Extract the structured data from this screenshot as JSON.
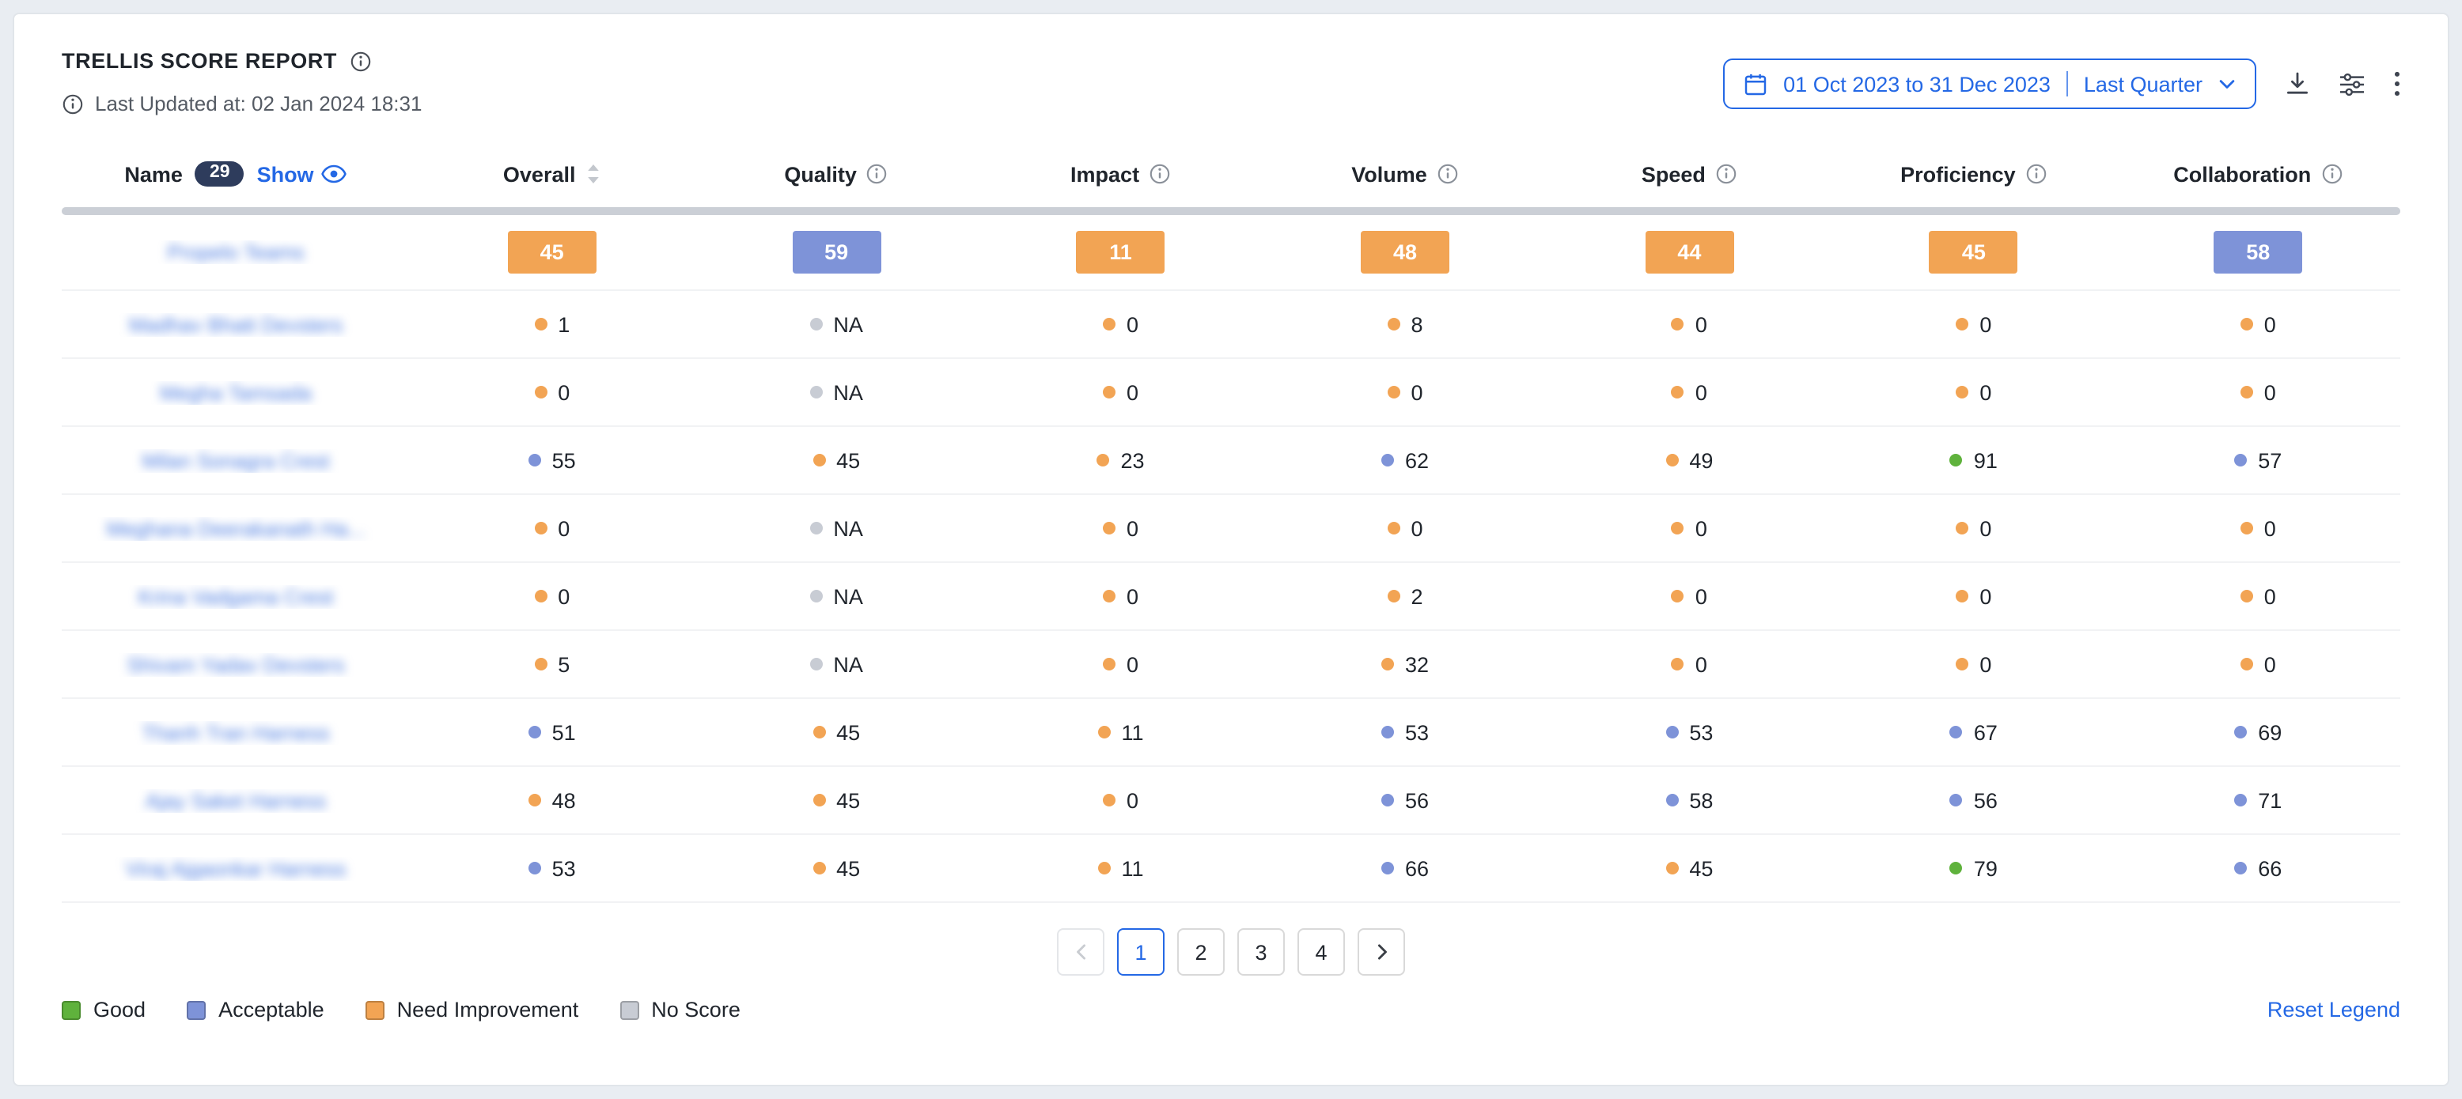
{
  "header": {
    "title": "TRELLIS SCORE REPORT",
    "last_updated": "Last Updated at: 02 Jan 2024 18:31",
    "date_range": "01 Oct 2023 to 31 Dec 2023",
    "date_preset": "Last Quarter"
  },
  "table": {
    "name_header": "Name",
    "count_badge": "29",
    "show_label": "Show",
    "names_obfuscated": true,
    "columns": [
      "Overall",
      "Quality",
      "Impact",
      "Volume",
      "Speed",
      "Proficiency",
      "Collaboration"
    ],
    "summary_row": {
      "name": "Propelo Teams",
      "scores": [
        {
          "value": "45",
          "level": "need-improvement"
        },
        {
          "value": "59",
          "level": "acceptable"
        },
        {
          "value": "11",
          "level": "need-improvement"
        },
        {
          "value": "48",
          "level": "need-improvement"
        },
        {
          "value": "44",
          "level": "need-improvement"
        },
        {
          "value": "45",
          "level": "need-improvement"
        },
        {
          "value": "58",
          "level": "acceptable"
        }
      ]
    },
    "rows": [
      {
        "name": "Madhav Bhatt Devsters",
        "scores": [
          {
            "value": "1",
            "level": "need-improvement"
          },
          {
            "value": "NA",
            "level": "no-score"
          },
          {
            "value": "0",
            "level": "need-improvement"
          },
          {
            "value": "8",
            "level": "need-improvement"
          },
          {
            "value": "0",
            "level": "need-improvement"
          },
          {
            "value": "0",
            "level": "need-improvement"
          },
          {
            "value": "0",
            "level": "need-improvement"
          }
        ]
      },
      {
        "name": "Megha Tamsada",
        "scores": [
          {
            "value": "0",
            "level": "need-improvement"
          },
          {
            "value": "NA",
            "level": "no-score"
          },
          {
            "value": "0",
            "level": "need-improvement"
          },
          {
            "value": "0",
            "level": "need-improvement"
          },
          {
            "value": "0",
            "level": "need-improvement"
          },
          {
            "value": "0",
            "level": "need-improvement"
          },
          {
            "value": "0",
            "level": "need-improvement"
          }
        ]
      },
      {
        "name": "Milan Sonagra Crest",
        "scores": [
          {
            "value": "55",
            "level": "acceptable"
          },
          {
            "value": "45",
            "level": "need-improvement"
          },
          {
            "value": "23",
            "level": "need-improvement"
          },
          {
            "value": "62",
            "level": "acceptable"
          },
          {
            "value": "49",
            "level": "need-improvement"
          },
          {
            "value": "91",
            "level": "good"
          },
          {
            "value": "57",
            "level": "acceptable"
          }
        ]
      },
      {
        "name": "Meghana Deerakanath Ha...",
        "scores": [
          {
            "value": "0",
            "level": "need-improvement"
          },
          {
            "value": "NA",
            "level": "no-score"
          },
          {
            "value": "0",
            "level": "need-improvement"
          },
          {
            "value": "0",
            "level": "need-improvement"
          },
          {
            "value": "0",
            "level": "need-improvement"
          },
          {
            "value": "0",
            "level": "need-improvement"
          },
          {
            "value": "0",
            "level": "need-improvement"
          }
        ]
      },
      {
        "name": "Krina Vadgama Crest",
        "scores": [
          {
            "value": "0",
            "level": "need-improvement"
          },
          {
            "value": "NA",
            "level": "no-score"
          },
          {
            "value": "0",
            "level": "need-improvement"
          },
          {
            "value": "2",
            "level": "need-improvement"
          },
          {
            "value": "0",
            "level": "need-improvement"
          },
          {
            "value": "0",
            "level": "need-improvement"
          },
          {
            "value": "0",
            "level": "need-improvement"
          }
        ]
      },
      {
        "name": "Shivam Yadav Devsters",
        "scores": [
          {
            "value": "5",
            "level": "need-improvement"
          },
          {
            "value": "NA",
            "level": "no-score"
          },
          {
            "value": "0",
            "level": "need-improvement"
          },
          {
            "value": "32",
            "level": "need-improvement"
          },
          {
            "value": "0",
            "level": "need-improvement"
          },
          {
            "value": "0",
            "level": "need-improvement"
          },
          {
            "value": "0",
            "level": "need-improvement"
          }
        ]
      },
      {
        "name": "Thanh Tran Harness",
        "scores": [
          {
            "value": "51",
            "level": "acceptable"
          },
          {
            "value": "45",
            "level": "need-improvement"
          },
          {
            "value": "11",
            "level": "need-improvement"
          },
          {
            "value": "53",
            "level": "acceptable"
          },
          {
            "value": "53",
            "level": "acceptable"
          },
          {
            "value": "67",
            "level": "acceptable"
          },
          {
            "value": "69",
            "level": "acceptable"
          }
        ]
      },
      {
        "name": "Ajay Saket Harness",
        "scores": [
          {
            "value": "48",
            "level": "need-improvement"
          },
          {
            "value": "45",
            "level": "need-improvement"
          },
          {
            "value": "0",
            "level": "need-improvement"
          },
          {
            "value": "56",
            "level": "acceptable"
          },
          {
            "value": "58",
            "level": "acceptable"
          },
          {
            "value": "56",
            "level": "acceptable"
          },
          {
            "value": "71",
            "level": "acceptable"
          }
        ]
      },
      {
        "name": "Viraj Ajgaonkar Harness",
        "scores": [
          {
            "value": "53",
            "level": "acceptable"
          },
          {
            "value": "45",
            "level": "need-improvement"
          },
          {
            "value": "11",
            "level": "need-improvement"
          },
          {
            "value": "66",
            "level": "acceptable"
          },
          {
            "value": "45",
            "level": "need-improvement"
          },
          {
            "value": "79",
            "level": "good"
          },
          {
            "value": "66",
            "level": "acceptable"
          }
        ]
      }
    ]
  },
  "pagination": {
    "pages": [
      "1",
      "2",
      "3",
      "4"
    ],
    "active": "1"
  },
  "legend": [
    {
      "label": "Good",
      "level": "good"
    },
    {
      "label": "Acceptable",
      "level": "acceptable"
    },
    {
      "label": "Need Improvement",
      "level": "need-improvement"
    },
    {
      "label": "No Score",
      "level": "no-score"
    }
  ],
  "footer": {
    "reset_label": "Reset Legend"
  },
  "colors": {
    "good": "#5fb23c",
    "acceptable": "#7e93d8",
    "need_improvement": "#f2a454",
    "no_score": "#c8ccd4",
    "accent_blue": "#2468e5",
    "count_badge_bg": "#2e3c5c"
  }
}
